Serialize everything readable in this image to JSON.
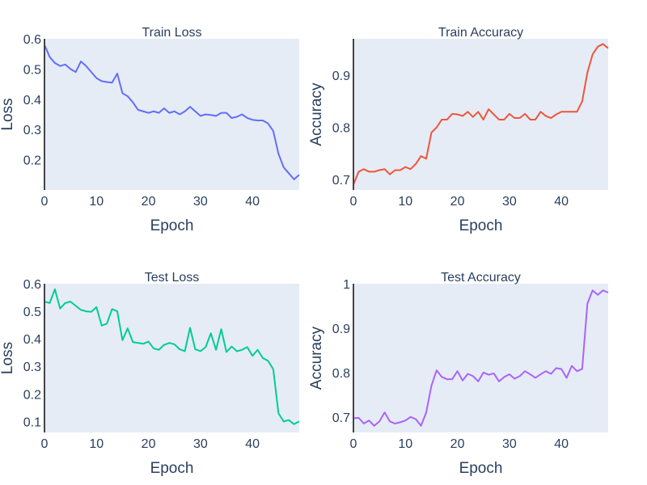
{
  "chart_data": [
    {
      "type": "line",
      "title": "Train Loss",
      "xlabel": "Epoch",
      "ylabel": "Loss",
      "xlim": [
        0,
        49
      ],
      "ylim": [
        0.1,
        0.6
      ],
      "xticks": [
        0,
        10,
        20,
        30,
        40
      ],
      "xtick_labels": [
        "0",
        "10",
        "20",
        "30",
        "40"
      ],
      "yticks": [
        0.2,
        0.3,
        0.4,
        0.5,
        0.6
      ],
      "ytick_labels": [
        "0.2",
        "0.3",
        "0.4",
        "0.5",
        "0.6"
      ],
      "grid": false,
      "series": [
        {
          "color": "#636efa",
          "x": [
            0,
            1,
            2,
            3,
            4,
            5,
            6,
            7,
            8,
            9,
            10,
            11,
            12,
            13,
            14,
            15,
            16,
            17,
            18,
            19,
            20,
            21,
            22,
            23,
            24,
            25,
            26,
            27,
            28,
            29,
            30,
            31,
            32,
            33,
            34,
            35,
            36,
            37,
            38,
            39,
            40,
            41,
            42,
            43,
            44,
            45,
            46,
            47,
            48,
            49
          ],
          "values": [
            0.58,
            0.54,
            0.52,
            0.51,
            0.515,
            0.5,
            0.49,
            0.525,
            0.51,
            0.49,
            0.47,
            0.46,
            0.457,
            0.455,
            0.485,
            0.42,
            0.41,
            0.39,
            0.365,
            0.36,
            0.355,
            0.36,
            0.355,
            0.37,
            0.355,
            0.36,
            0.35,
            0.36,
            0.375,
            0.36,
            0.345,
            0.35,
            0.348,
            0.345,
            0.355,
            0.355,
            0.338,
            0.342,
            0.35,
            0.338,
            0.332,
            0.33,
            0.33,
            0.32,
            0.295,
            0.22,
            0.175,
            0.155,
            0.135,
            0.15
          ]
        }
      ]
    },
    {
      "type": "line",
      "title": "Train Accuracy",
      "xlabel": "Epoch",
      "ylabel": "Accuracy",
      "xlim": [
        0,
        49
      ],
      "ylim": [
        0.68,
        0.97
      ],
      "xticks": [
        0,
        10,
        20,
        30,
        40
      ],
      "xtick_labels": [
        "0",
        "10",
        "20",
        "30",
        "40"
      ],
      "yticks": [
        0.7,
        0.8,
        0.9
      ],
      "ytick_labels": [
        "0.7",
        "0.8",
        "0.9"
      ],
      "grid": false,
      "series": [
        {
          "color": "#ef553b",
          "x": [
            0,
            1,
            2,
            3,
            4,
            5,
            6,
            7,
            8,
            9,
            10,
            11,
            12,
            13,
            14,
            15,
            16,
            17,
            18,
            19,
            20,
            21,
            22,
            23,
            24,
            25,
            26,
            27,
            28,
            29,
            30,
            31,
            32,
            33,
            34,
            35,
            36,
            37,
            38,
            39,
            40,
            41,
            42,
            43,
            44,
            45,
            46,
            47,
            48,
            49
          ],
          "values": [
            0.69,
            0.715,
            0.72,
            0.715,
            0.715,
            0.718,
            0.72,
            0.71,
            0.718,
            0.718,
            0.724,
            0.72,
            0.73,
            0.745,
            0.74,
            0.79,
            0.8,
            0.815,
            0.815,
            0.826,
            0.825,
            0.822,
            0.83,
            0.82,
            0.83,
            0.815,
            0.835,
            0.825,
            0.815,
            0.815,
            0.826,
            0.818,
            0.818,
            0.826,
            0.815,
            0.815,
            0.83,
            0.822,
            0.818,
            0.825,
            0.83,
            0.83,
            0.83,
            0.83,
            0.85,
            0.905,
            0.94,
            0.955,
            0.96,
            0.952
          ]
        }
      ]
    },
    {
      "type": "line",
      "title": "Test Loss",
      "xlabel": "Epoch",
      "ylabel": "Loss",
      "xlim": [
        0,
        49
      ],
      "ylim": [
        0.06,
        0.6
      ],
      "xticks": [
        0,
        10,
        20,
        30,
        40
      ],
      "xtick_labels": [
        "0",
        "10",
        "20",
        "30",
        "40"
      ],
      "yticks": [
        0.1,
        0.2,
        0.3,
        0.4,
        0.5,
        0.6
      ],
      "ytick_labels": [
        "0.1",
        "0.2",
        "0.3",
        "0.4",
        "0.5",
        "0.6"
      ],
      "grid": false,
      "series": [
        {
          "color": "#00cc96",
          "x": [
            0,
            1,
            2,
            3,
            4,
            5,
            6,
            7,
            8,
            9,
            10,
            11,
            12,
            13,
            14,
            15,
            16,
            17,
            18,
            19,
            20,
            21,
            22,
            23,
            24,
            25,
            26,
            27,
            28,
            29,
            30,
            31,
            32,
            33,
            34,
            35,
            36,
            37,
            38,
            39,
            40,
            41,
            42,
            43,
            44,
            45,
            46,
            47,
            48,
            49
          ],
          "values": [
            0.535,
            0.53,
            0.58,
            0.51,
            0.53,
            0.535,
            0.52,
            0.505,
            0.5,
            0.498,
            0.515,
            0.448,
            0.455,
            0.508,
            0.5,
            0.395,
            0.438,
            0.388,
            0.385,
            0.382,
            0.39,
            0.365,
            0.36,
            0.378,
            0.385,
            0.38,
            0.362,
            0.355,
            0.44,
            0.362,
            0.355,
            0.37,
            0.42,
            0.36,
            0.435,
            0.352,
            0.372,
            0.355,
            0.36,
            0.37,
            0.338,
            0.36,
            0.33,
            0.32,
            0.29,
            0.13,
            0.1,
            0.105,
            0.09,
            0.1
          ]
        }
      ]
    },
    {
      "type": "line",
      "title": "Test Accuracy",
      "xlabel": "Epoch",
      "ylabel": "Accuracy",
      "xlim": [
        0,
        49
      ],
      "ylim": [
        0.665,
        1.0
      ],
      "xticks": [
        0,
        10,
        20,
        30,
        40
      ],
      "xtick_labels": [
        "0",
        "10",
        "20",
        "30",
        "40"
      ],
      "yticks": [
        0.7,
        0.8,
        0.9,
        1.0
      ],
      "ytick_labels": [
        "0.7",
        "0.8",
        "0.9",
        "1"
      ],
      "grid": false,
      "series": [
        {
          "color": "#ab63fa",
          "x": [
            0,
            1,
            2,
            3,
            4,
            5,
            6,
            7,
            8,
            9,
            10,
            11,
            12,
            13,
            14,
            15,
            16,
            17,
            18,
            19,
            20,
            21,
            22,
            23,
            24,
            25,
            26,
            27,
            28,
            29,
            30,
            31,
            32,
            33,
            34,
            35,
            36,
            37,
            38,
            39,
            40,
            41,
            42,
            43,
            44,
            45,
            46,
            47,
            48,
            49
          ],
          "values": [
            0.697,
            0.698,
            0.685,
            0.692,
            0.68,
            0.69,
            0.71,
            0.69,
            0.685,
            0.688,
            0.692,
            0.7,
            0.695,
            0.68,
            0.71,
            0.77,
            0.805,
            0.79,
            0.785,
            0.785,
            0.803,
            0.782,
            0.797,
            0.792,
            0.78,
            0.8,
            0.795,
            0.798,
            0.78,
            0.79,
            0.796,
            0.786,
            0.792,
            0.803,
            0.796,
            0.788,
            0.796,
            0.803,
            0.797,
            0.81,
            0.808,
            0.788,
            0.815,
            0.803,
            0.808,
            0.955,
            0.985,
            0.975,
            0.985,
            0.98
          ]
        }
      ]
    }
  ]
}
